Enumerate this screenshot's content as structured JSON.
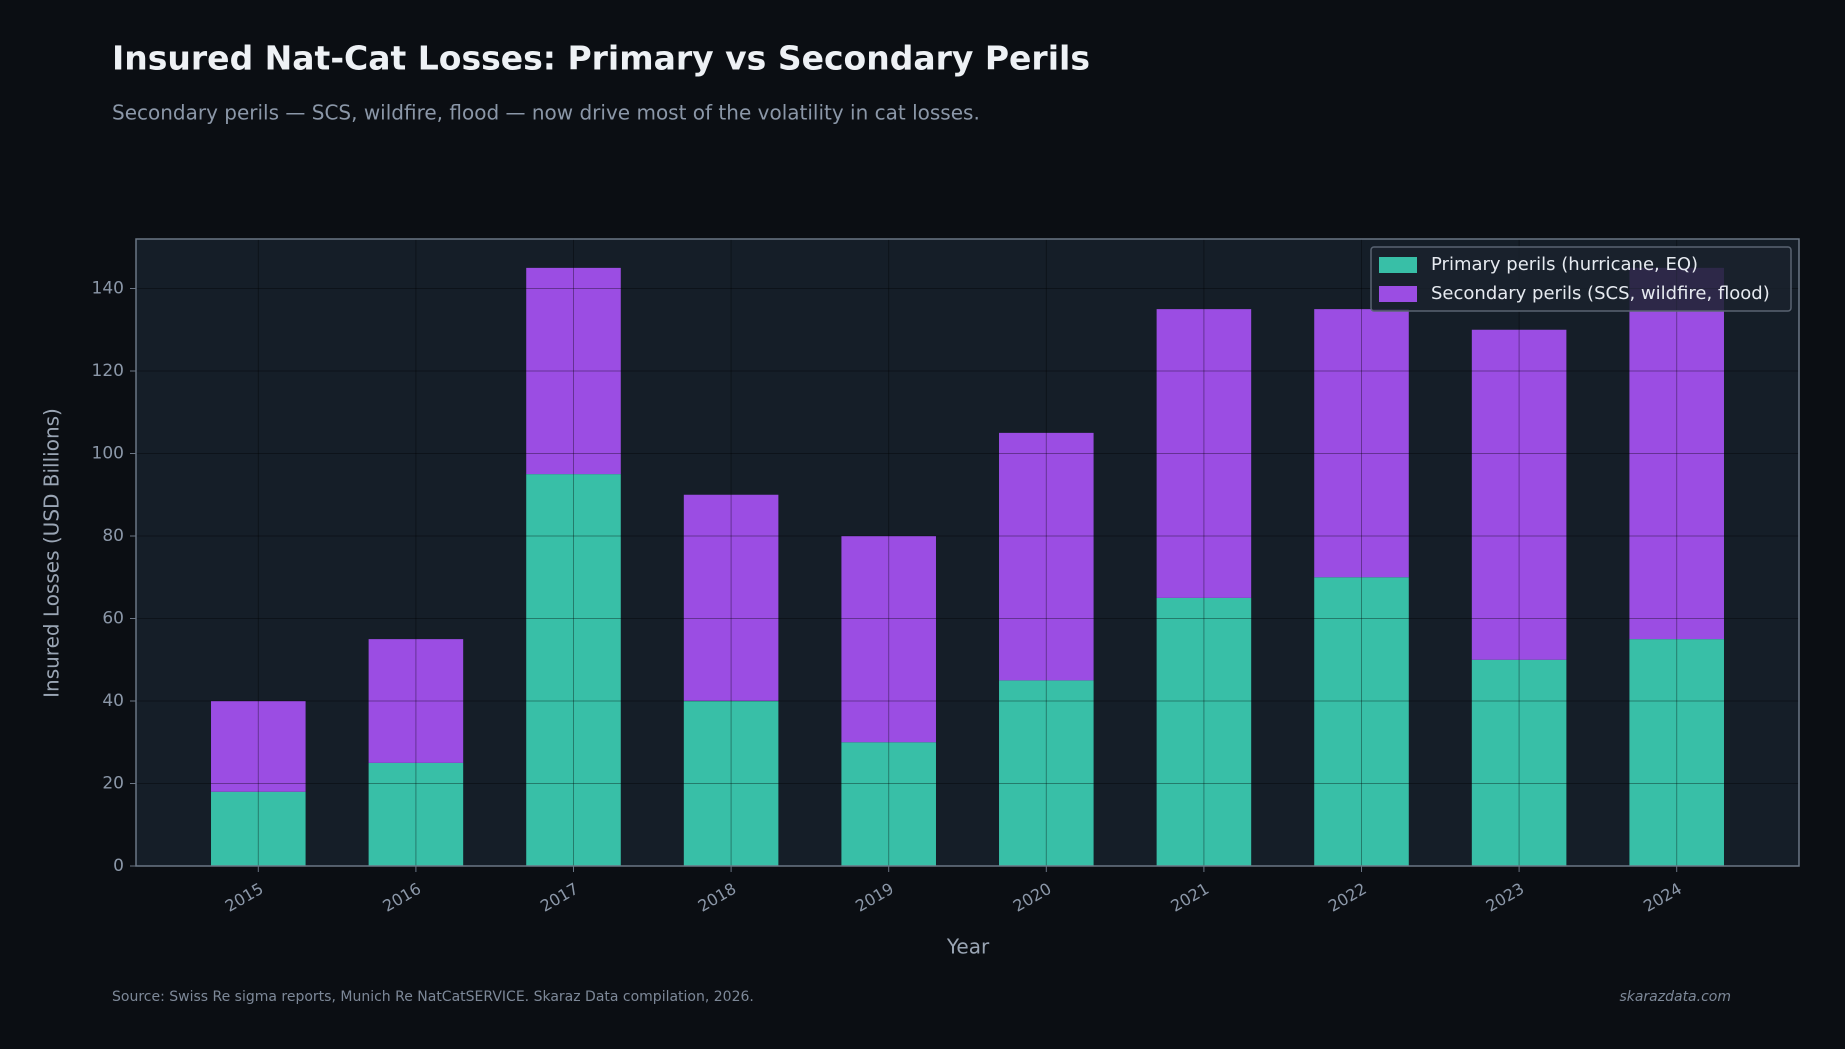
{
  "chart_data": {
    "type": "stacked_bar",
    "title": "Insured Nat-Cat Losses: Primary vs Secondary Perils",
    "subtitle": "Secondary perils — SCS, wildfire, flood — now drive most of the volatility in cat losses.",
    "x_label": "Year",
    "y_label": "Insured Losses (USD Billions)",
    "categories": [
      "2015",
      "2016",
      "2017",
      "2018",
      "2019",
      "2020",
      "2021",
      "2022",
      "2023",
      "2024"
    ],
    "series": [
      {
        "name": "Primary perils (hurricane, EQ)",
        "color": "#38bfa7",
        "values": [
          18,
          25,
          95,
          40,
          30,
          45,
          65,
          70,
          50,
          55
        ]
      },
      {
        "name": "Secondary perils (SCS, wildfire, flood)",
        "color": "#9b4de3",
        "values": [
          22,
          30,
          50,
          50,
          50,
          60,
          70,
          65,
          80,
          90
        ]
      }
    ],
    "ylim": [
      0,
      152
    ],
    "yticks": [
      0,
      20,
      40,
      60,
      80,
      100,
      120,
      140
    ],
    "grid": true,
    "legend": "upper right",
    "source": "Source: Swiss Re sigma reports, Munich Re NatCatSERVICE. Skaraz Data compilation, 2026.",
    "watermark": "skarazdata.com"
  }
}
